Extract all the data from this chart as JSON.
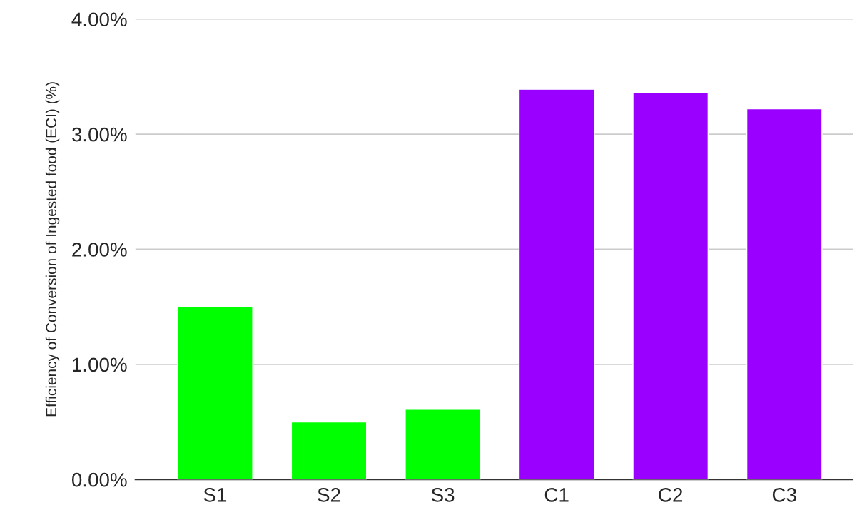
{
  "chart_data": {
    "type": "bar",
    "ylabel": "Efficiency of Conversion of Ingested food (ECI) (%)",
    "categories": [
      "S1",
      "S2",
      "S3",
      "C1",
      "C2",
      "C3"
    ],
    "values": [
      1.5,
      0.5,
      0.61,
      3.39,
      3.36,
      3.22
    ],
    "colors": [
      "#00ff00",
      "#00ff00",
      "#00ff00",
      "#9900ff",
      "#9900ff",
      "#9900ff"
    ],
    "ylim": [
      0,
      4
    ],
    "yticks": [
      {
        "value": 0,
        "label": "0.00%"
      },
      {
        "value": 1,
        "label": "1.00%"
      },
      {
        "value": 2,
        "label": "2.00%"
      },
      {
        "value": 3,
        "label": "3.00%"
      },
      {
        "value": 4,
        "label": "4.00%"
      }
    ],
    "grid": "y"
  }
}
